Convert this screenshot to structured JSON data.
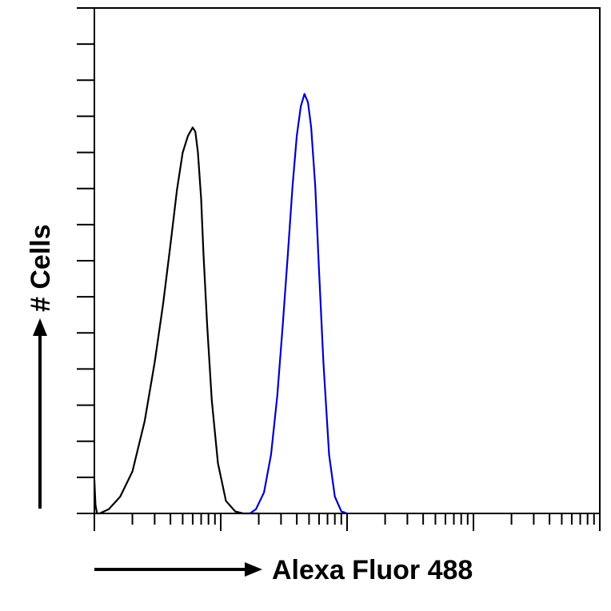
{
  "chart_data": {
    "type": "line",
    "title": "",
    "xlabel": "Alexa Fluor 488",
    "ylabel": "# Cells",
    "x_scale": "log",
    "xlim": [
      1,
      10000
    ],
    "grid": false,
    "legend": "none",
    "series": [
      {
        "color": "#000000",
        "x": [
          1,
          1.02,
          1.05,
          1.1,
          1.3,
          1.6,
          2.0,
          2.5,
          3.0,
          3.5,
          4.0,
          4.5,
          5.0,
          5.5,
          6.0,
          6.3,
          6.6,
          7.0,
          7.3,
          7.8,
          8.5,
          9.5,
          11,
          13,
          15,
          17,
          20
        ],
        "y": [
          0.08,
          0.02,
          0.0,
          0.0,
          0.01,
          0.04,
          0.1,
          0.22,
          0.36,
          0.5,
          0.64,
          0.77,
          0.86,
          0.9,
          0.92,
          0.91,
          0.86,
          0.75,
          0.62,
          0.45,
          0.27,
          0.12,
          0.03,
          0.005,
          0.0,
          0.0,
          0.0
        ]
      },
      {
        "color": "#0000cc",
        "x": [
          17,
          19,
          22,
          25,
          28,
          31,
          34,
          37,
          40,
          43,
          46,
          49,
          52,
          56,
          60,
          65,
          72,
          80,
          90,
          100
        ],
        "y": [
          0.0,
          0.01,
          0.05,
          0.14,
          0.28,
          0.45,
          0.62,
          0.78,
          0.9,
          0.97,
          1.0,
          0.98,
          0.92,
          0.78,
          0.58,
          0.36,
          0.14,
          0.04,
          0.005,
          0.0
        ]
      }
    ]
  }
}
